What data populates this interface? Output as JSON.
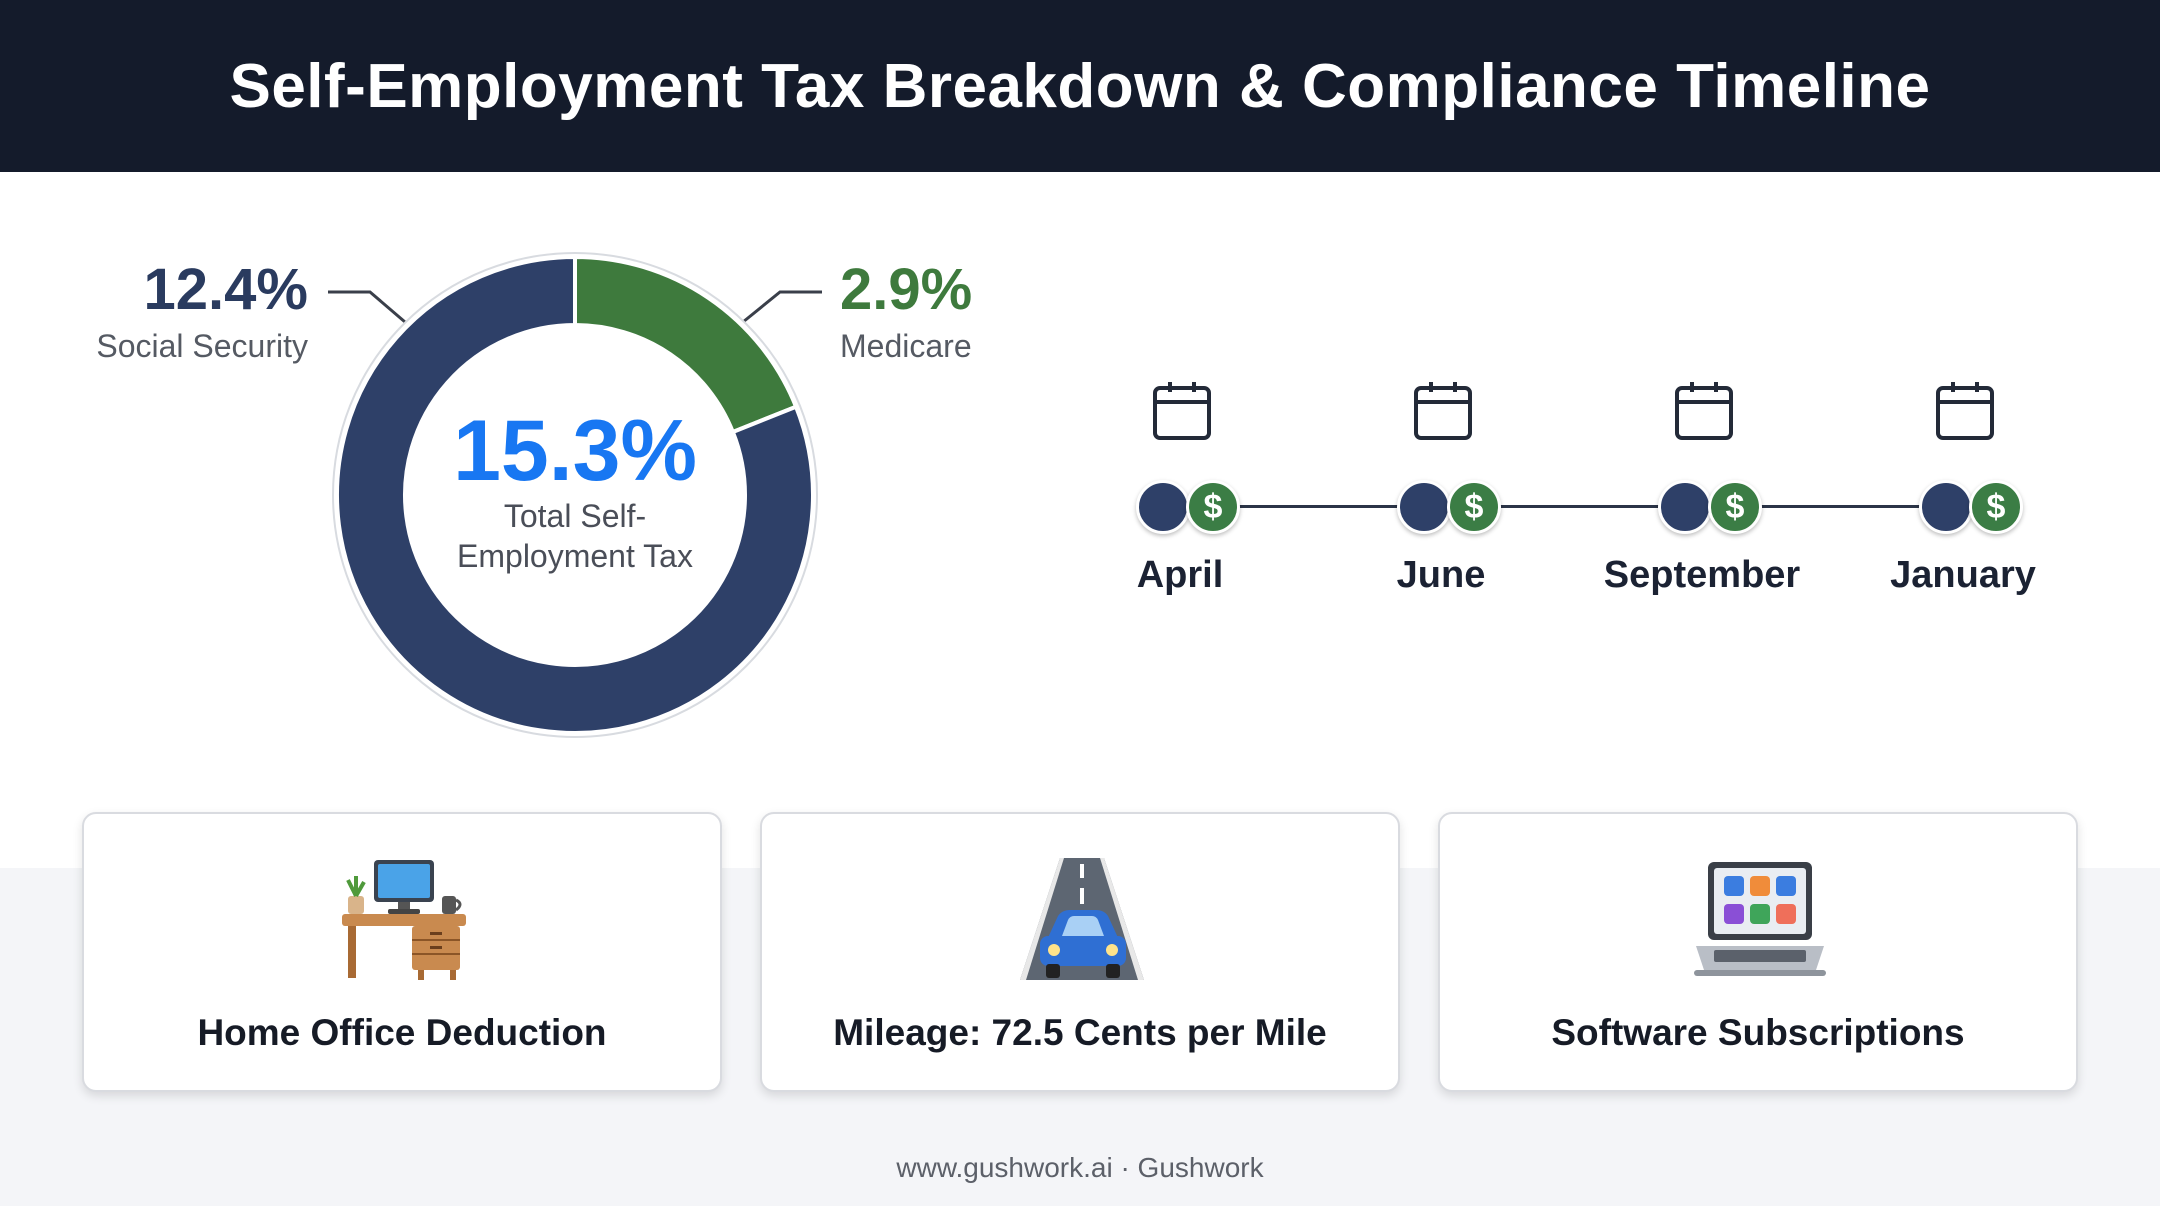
{
  "header": {
    "title": "Self-Employment Tax Breakdown & Compliance Timeline"
  },
  "chart_data": {
    "type": "pie",
    "variant": "donut",
    "slices": [
      {
        "name": "Social Security",
        "label": "12.4%",
        "value": 12.4,
        "color": "#2e4068"
      },
      {
        "name": "Medicare",
        "label": "2.9%",
        "value": 2.9,
        "color": "#3e7a3d"
      }
    ],
    "center_value": "15.3%",
    "center_label": "Total Self-Employment Tax"
  },
  "colors": {
    "navy": "#2e4068",
    "green": "#3e7a3d",
    "accent_blue": "#1877f2",
    "header_bg": "#141b2b"
  },
  "timeline": {
    "dollar_symbol": "$",
    "items": [
      {
        "label": "April",
        "icon": "calendar-icon"
      },
      {
        "label": "June",
        "icon": "calendar-icon"
      },
      {
        "label": "September",
        "icon": "calendar-icon"
      },
      {
        "label": "January",
        "icon": "calendar-icon"
      }
    ]
  },
  "cards": [
    {
      "title": "Home Office Deduction",
      "icon": "desk-computer-icon"
    },
    {
      "title": "Mileage: 72.5 Cents per Mile",
      "icon": "road-car-icon"
    },
    {
      "title": "Software Subscriptions",
      "icon": "laptop-apps-icon"
    }
  ],
  "footer": {
    "text": "www.gushwork.ai · Gushwork"
  }
}
